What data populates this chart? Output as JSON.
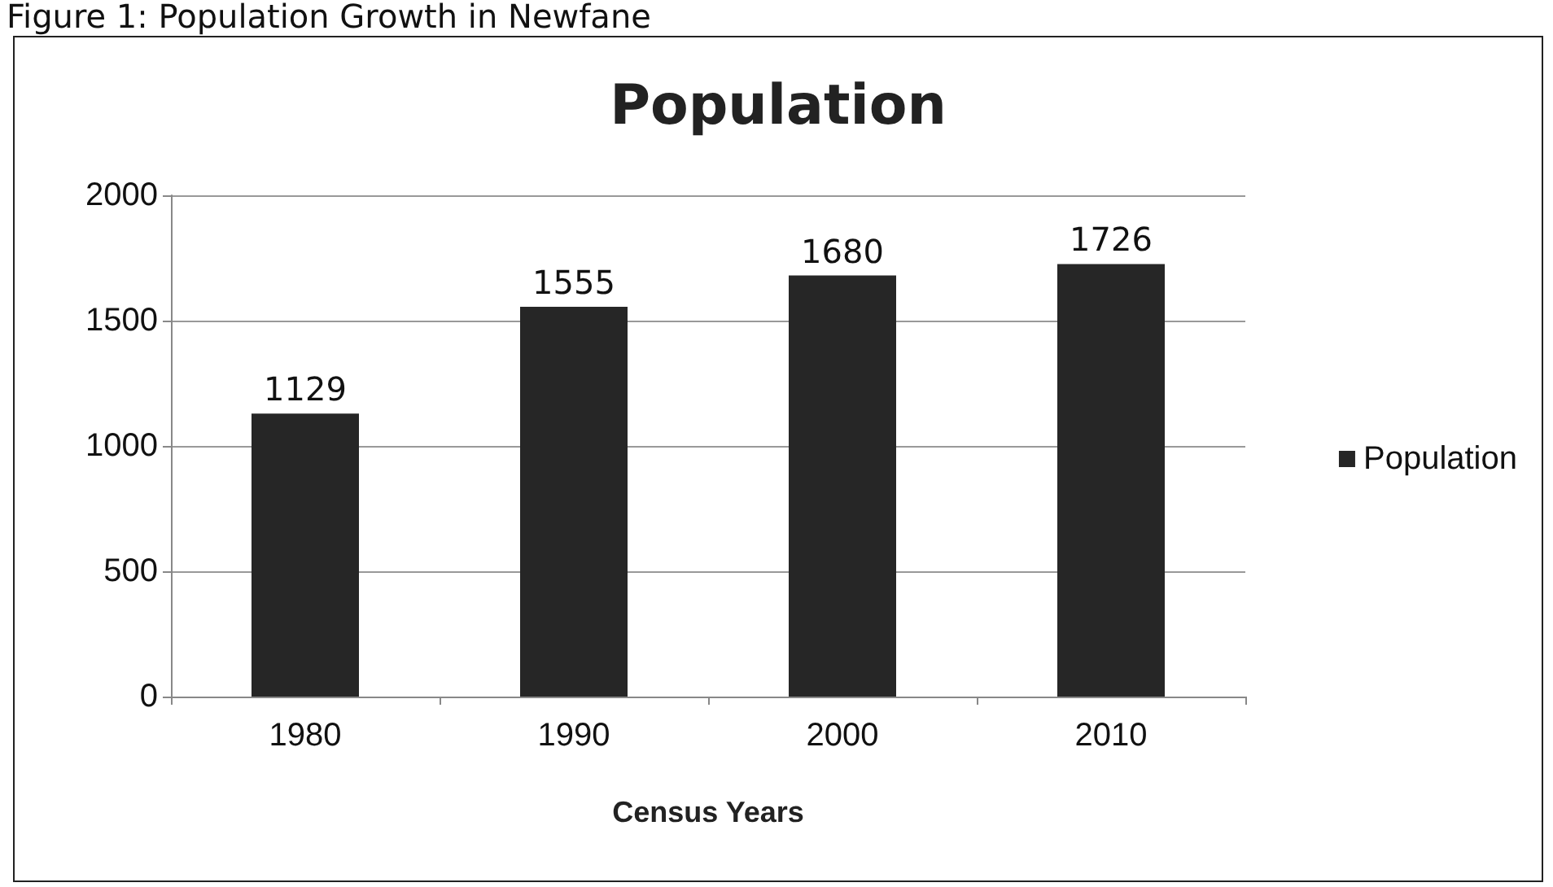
{
  "chart_data": {
    "type": "bar",
    "title": "Population",
    "xlabel": "Census Years",
    "annotations": [
      "Figure 1: Population Growth in Newfane"
    ],
    "categories": [
      "1980",
      "1990",
      "2000",
      "2010"
    ],
    "series": [
      {
        "name": "Population",
        "color": "#262626",
        "values": [
          1129,
          1555,
          1680,
          1726
        ]
      }
    ],
    "ylim": [
      0,
      2000
    ],
    "yticks": [
      0,
      500,
      1000,
      1500,
      2000
    ],
    "grid": "y",
    "legend": "right",
    "data_labels": true
  }
}
